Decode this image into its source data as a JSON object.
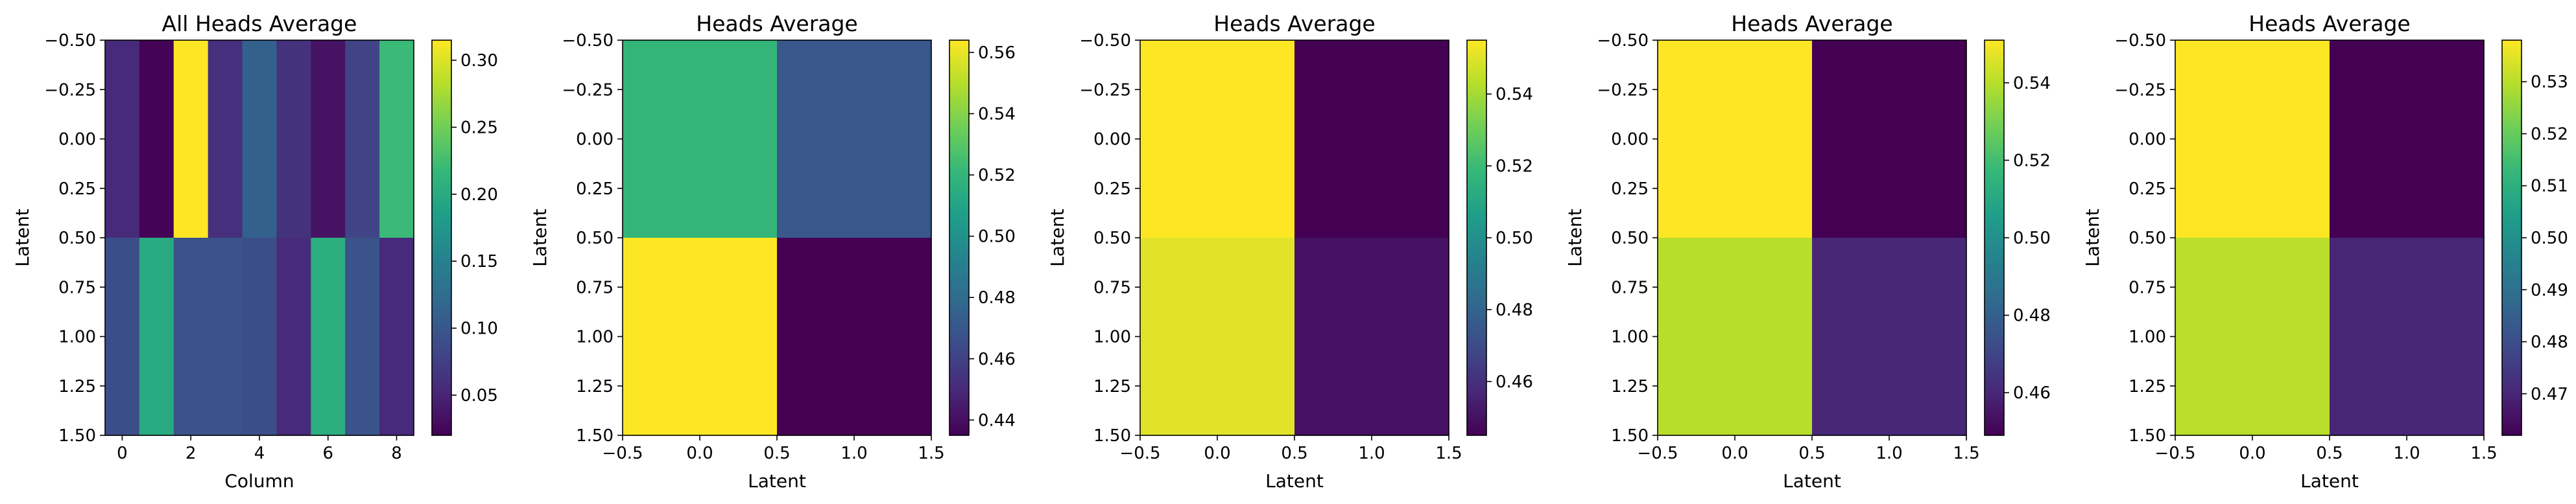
{
  "colormap": "viridis",
  "chart_data": [
    {
      "type": "heatmap",
      "title": "All Heads Average",
      "xlabel": "Column",
      "ylabel": "Latent",
      "xlim": [
        -0.5,
        8.5
      ],
      "ylim": [
        1.5,
        -0.5
      ],
      "xticks": [
        0,
        2,
        4,
        6,
        8
      ],
      "xtick_labels": [
        "0",
        "2",
        "4",
        "6",
        "8"
      ],
      "yticks": [
        -0.5,
        -0.25,
        0.0,
        0.25,
        0.5,
        0.75,
        1.0,
        1.25,
        1.5
      ],
      "ytick_labels": [
        "−0.50",
        "−0.25",
        "0.00",
        "0.25",
        "0.50",
        "0.75",
        "1.00",
        "1.25",
        "1.50"
      ],
      "rows": [
        0,
        1
      ],
      "columns": [
        0,
        1,
        2,
        3,
        4,
        5,
        6,
        7,
        8
      ],
      "values": [
        [
          0.055,
          0.022,
          0.315,
          0.06,
          0.11,
          0.062,
          0.035,
          0.08,
          0.22
        ],
        [
          0.09,
          0.2,
          0.095,
          0.095,
          0.09,
          0.055,
          0.205,
          0.095,
          0.055
        ]
      ],
      "vmin": 0.02,
      "vmax": 0.315,
      "colorbar_ticks": [
        0.05,
        0.1,
        0.15,
        0.2,
        0.25,
        0.3
      ],
      "colorbar_labels": [
        "0.05",
        "0.10",
        "0.15",
        "0.20",
        "0.25",
        "0.30"
      ]
    },
    {
      "type": "heatmap",
      "title": "Heads Average",
      "xlabel": "Latent",
      "ylabel": "Latent",
      "xlim": [
        -0.5,
        1.5
      ],
      "ylim": [
        1.5,
        -0.5
      ],
      "xticks": [
        -0.5,
        0.0,
        0.5,
        1.0,
        1.5
      ],
      "xtick_labels": [
        "−0.5",
        "0.0",
        "0.5",
        "1.0",
        "1.5"
      ],
      "yticks": [
        -0.5,
        -0.25,
        0.0,
        0.25,
        0.5,
        0.75,
        1.0,
        1.25,
        1.5
      ],
      "ytick_labels": [
        "−0.50",
        "−0.25",
        "0.00",
        "0.25",
        "0.50",
        "0.75",
        "1.00",
        "1.25",
        "1.50"
      ],
      "rows": [
        0,
        1
      ],
      "columns": [
        0,
        1
      ],
      "values": [
        [
          0.52,
          0.47
        ],
        [
          0.564,
          0.435
        ]
      ],
      "vmin": 0.435,
      "vmax": 0.564,
      "colorbar_ticks": [
        0.44,
        0.46,
        0.48,
        0.5,
        0.52,
        0.54,
        0.56
      ],
      "colorbar_labels": [
        "0.44",
        "0.46",
        "0.48",
        "0.50",
        "0.52",
        "0.54",
        "0.56"
      ]
    },
    {
      "type": "heatmap",
      "title": "Heads Average",
      "xlabel": "Latent",
      "ylabel": "Latent",
      "xlim": [
        -0.5,
        1.5
      ],
      "ylim": [
        1.5,
        -0.5
      ],
      "xticks": [
        -0.5,
        0.0,
        0.5,
        1.0,
        1.5
      ],
      "xtick_labels": [
        "−0.5",
        "0.0",
        "0.5",
        "1.0",
        "1.5"
      ],
      "yticks": [
        -0.5,
        -0.25,
        0.0,
        0.25,
        0.5,
        0.75,
        1.0,
        1.25,
        1.5
      ],
      "ytick_labels": [
        "−0.50",
        "−0.25",
        "0.00",
        "0.25",
        "0.50",
        "0.75",
        "1.00",
        "1.25",
        "1.50"
      ],
      "rows": [
        0,
        1
      ],
      "columns": [
        0,
        1
      ],
      "values": [
        [
          0.555,
          0.445
        ],
        [
          0.55,
          0.45
        ]
      ],
      "vmin": 0.445,
      "vmax": 0.555,
      "colorbar_ticks": [
        0.46,
        0.48,
        0.5,
        0.52,
        0.54
      ],
      "colorbar_labels": [
        "0.46",
        "0.48",
        "0.50",
        "0.52",
        "0.54"
      ]
    },
    {
      "type": "heatmap",
      "title": "Heads Average",
      "xlabel": "Latent",
      "ylabel": "Latent",
      "xlim": [
        -0.5,
        1.5
      ],
      "ylim": [
        1.5,
        -0.5
      ],
      "xticks": [
        -0.5,
        0.0,
        0.5,
        1.0,
        1.5
      ],
      "xtick_labels": [
        "−0.5",
        "0.0",
        "0.5",
        "1.0",
        "1.5"
      ],
      "yticks": [
        -0.5,
        -0.25,
        0.0,
        0.25,
        0.5,
        0.75,
        1.0,
        1.25,
        1.5
      ],
      "ytick_labels": [
        "−0.50",
        "−0.25",
        "0.00",
        "0.25",
        "0.50",
        "0.75",
        "1.00",
        "1.25",
        "1.50"
      ],
      "rows": [
        0,
        1
      ],
      "columns": [
        0,
        1
      ],
      "values": [
        [
          0.551,
          0.449
        ],
        [
          0.54,
          0.46
        ]
      ],
      "vmin": 0.449,
      "vmax": 0.551,
      "colorbar_ticks": [
        0.46,
        0.48,
        0.5,
        0.52,
        0.54
      ],
      "colorbar_labels": [
        "0.46",
        "0.48",
        "0.50",
        "0.52",
        "0.54"
      ]
    },
    {
      "type": "heatmap",
      "title": "Heads Average",
      "xlabel": "Latent",
      "ylabel": "Latent",
      "xlim": [
        -0.5,
        1.5
      ],
      "ylim": [
        1.5,
        -0.5
      ],
      "xticks": [
        -0.5,
        0.0,
        0.5,
        1.0,
        1.5
      ],
      "xtick_labels": [
        "−0.5",
        "0.0",
        "0.5",
        "1.0",
        "1.5"
      ],
      "yticks": [
        -0.5,
        -0.25,
        0.0,
        0.25,
        0.5,
        0.75,
        1.0,
        1.25,
        1.5
      ],
      "ytick_labels": [
        "−0.50",
        "−0.25",
        "0.00",
        "0.25",
        "0.50",
        "0.75",
        "1.00",
        "1.25",
        "1.50"
      ],
      "rows": [
        0,
        1
      ],
      "columns": [
        0,
        1
      ],
      "values": [
        [
          0.538,
          0.462
        ],
        [
          0.53,
          0.47
        ]
      ],
      "vmin": 0.462,
      "vmax": 0.538,
      "colorbar_ticks": [
        0.47,
        0.48,
        0.49,
        0.5,
        0.51,
        0.52,
        0.53
      ],
      "colorbar_labels": [
        "0.47",
        "0.48",
        "0.49",
        "0.50",
        "0.51",
        "0.52",
        "0.53"
      ]
    }
  ]
}
